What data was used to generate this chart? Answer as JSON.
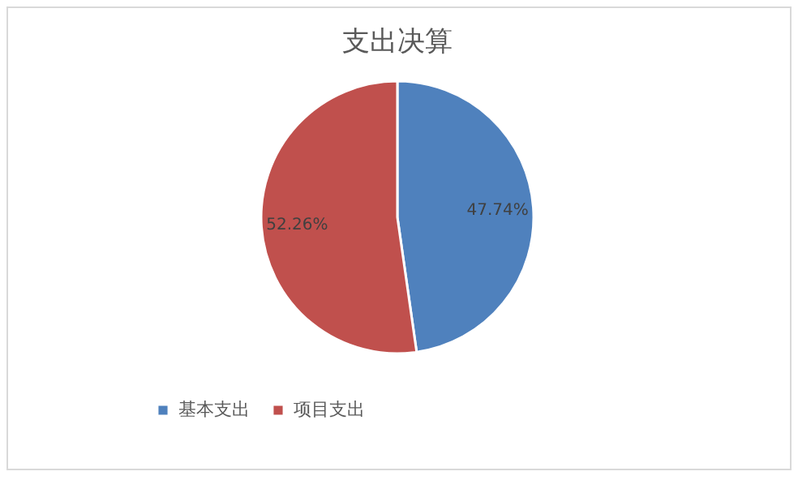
{
  "chart_data": {
    "type": "pie",
    "title": "支出决算",
    "categories": [
      "基本支出",
      "项目支出"
    ],
    "values": [
      47.74,
      52.26
    ],
    "colors": [
      "#4f81bd",
      "#c0504d"
    ],
    "value_labels": [
      "47.74%",
      "52.26%"
    ],
    "legend": "bottom"
  }
}
